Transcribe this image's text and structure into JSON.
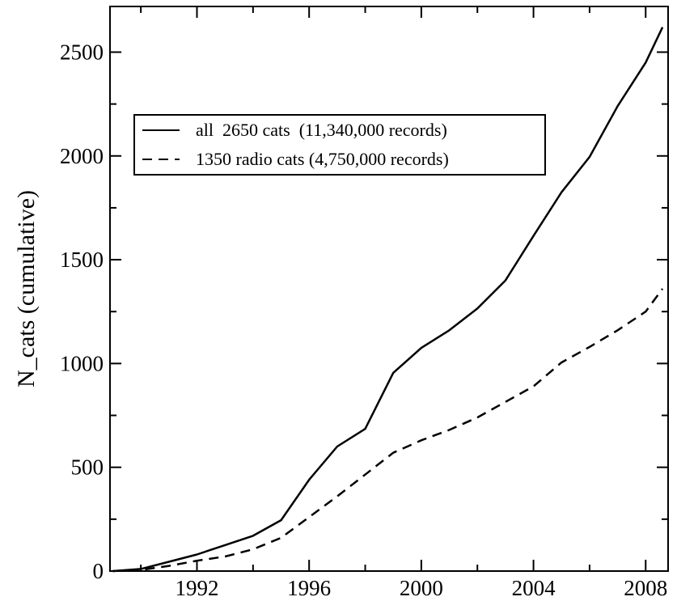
{
  "chart_data": {
    "type": "line",
    "title": "",
    "xlabel": "",
    "ylabel": "N_cats (cumulative)",
    "xlim": [
      1988.9,
      2008.8
    ],
    "ylim": [
      0,
      2720
    ],
    "x_ticks": [
      1992,
      1996,
      2000,
      2004,
      2008
    ],
    "x_tick_labels": [
      "1992",
      "1996",
      "2000",
      "2004",
      "2008"
    ],
    "y_ticks": [
      0,
      500,
      1000,
      1500,
      2000,
      2500
    ],
    "y_tick_labels": [
      "0",
      "500",
      "1000",
      "1500",
      "2000",
      "2500"
    ],
    "grid": false,
    "legend_position": "upper-left (boxed)",
    "series": [
      {
        "name": "all  2650 cats  (11,340,000 records)",
        "line_style": "solid",
        "color": "#000000",
        "x": [
          1989,
          1990,
          1991,
          1992,
          1993,
          1994,
          1995,
          1996,
          1997,
          1998,
          1999,
          2000,
          2001,
          2002,
          2003,
          2004,
          2005,
          2006,
          2007,
          2008,
          2008.6
        ],
        "y": [
          0,
          10,
          45,
          80,
          125,
          170,
          245,
          440,
          600,
          685,
          955,
          1075,
          1160,
          1265,
          1400,
          1615,
          1825,
          1995,
          2240,
          2450,
          2620
        ]
      },
      {
        "name": "1350 radio cats (4,750,000 records)",
        "line_style": "dashed",
        "color": "#000000",
        "x": [
          1989,
          1990,
          1991,
          1992,
          1993,
          1994,
          1995,
          1996,
          1997,
          1998,
          1999,
          2000,
          2001,
          2002,
          2003,
          2004,
          2005,
          2006,
          2007,
          2008,
          2008.6
        ],
        "y": [
          0,
          5,
          25,
          50,
          70,
          105,
          160,
          260,
          360,
          465,
          570,
          630,
          680,
          740,
          815,
          890,
          1005,
          1080,
          1160,
          1250,
          1360
        ]
      }
    ]
  }
}
